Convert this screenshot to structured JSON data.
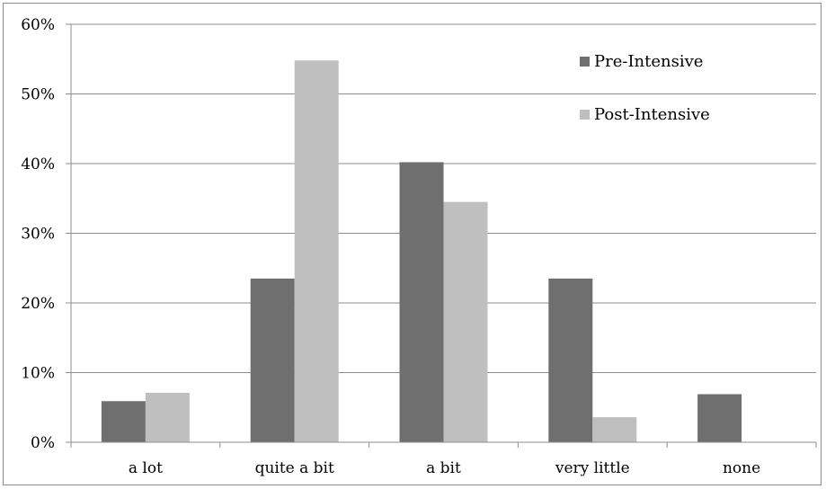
{
  "chart_data": {
    "type": "bar",
    "title": "",
    "xlabel": "",
    "ylabel": "",
    "categories": [
      "a lot",
      "quite a bit",
      "a bit",
      "very little",
      "none"
    ],
    "series": [
      {
        "name": "Pre-Intensive",
        "values": [
          5.9,
          23.5,
          40.2,
          23.5,
          6.9
        ],
        "color": "#6f6f6f"
      },
      {
        "name": "Post-Intensive",
        "values": [
          7.1,
          54.8,
          34.5,
          3.6,
          0
        ],
        "color": "#bfbfbf"
      }
    ],
    "yticks": [
      "0%",
      "10%",
      "20%",
      "30%",
      "40%",
      "50%",
      "60%"
    ],
    "ylim": [
      0,
      60
    ],
    "grid": true,
    "legend_position": "top-right"
  }
}
